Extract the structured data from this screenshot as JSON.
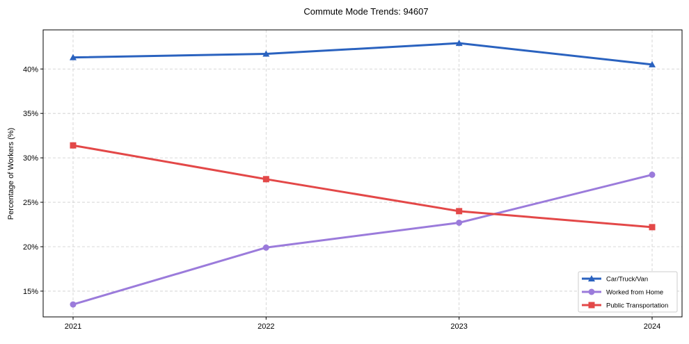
{
  "chart_data": {
    "type": "line",
    "title": "Commute Mode Trends: 94607",
    "xlabel": "",
    "ylabel": "Percentage of Workers (%)",
    "x": [
      2021,
      2022,
      2023,
      2024
    ],
    "x_tick_labels": [
      "2021",
      "2022",
      "2023",
      "2024"
    ],
    "xlim": [
      2020.845,
      2024.155
    ],
    "ylim": [
      12.1,
      44.4
    ],
    "y_ticks": [
      15,
      20,
      25,
      30,
      35,
      40
    ],
    "y_tick_labels": [
      "15%",
      "20%",
      "25%",
      "30%",
      "35%",
      "40%"
    ],
    "grid": true,
    "legend_position": "bottom-right",
    "series": [
      {
        "name": "Car/Truck/Van",
        "values": [
          41.3,
          41.7,
          42.9,
          40.5
        ],
        "color": "#2a62bf",
        "marker": "triangle"
      },
      {
        "name": "Worked from Home",
        "values": [
          13.5,
          19.9,
          22.7,
          28.1
        ],
        "color": "#9b7bdb",
        "marker": "circle"
      },
      {
        "name": "Public Transportation",
        "values": [
          31.4,
          27.6,
          24.0,
          22.2
        ],
        "color": "#e34848",
        "marker": "square"
      }
    ]
  }
}
